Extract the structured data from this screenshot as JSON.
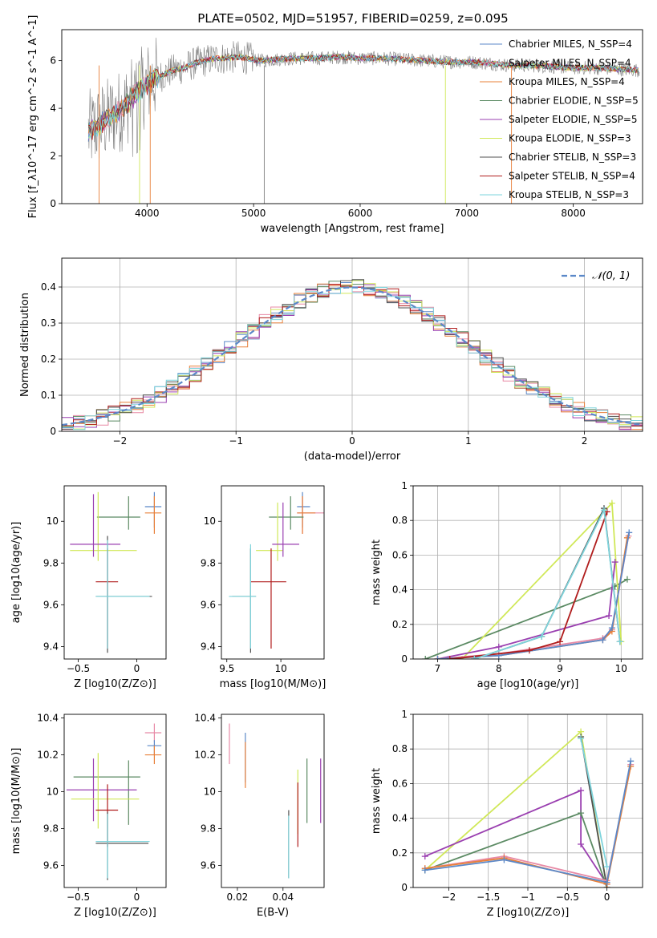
{
  "chart_data": [
    {
      "id": "spectrum",
      "type": "line",
      "title": "PLATE=0502, MJD=51957, FIBERID=0259, z=0.095",
      "xlabel": "wavelength [Angstrom, rest frame]",
      "ylabel": "Flux [f_λ10^-17 erg cm^-2 s^-1 A^-1]",
      "xlim": [
        3200,
        8650
      ],
      "ylim": [
        0,
        7.3
      ],
      "xticks": [
        4000,
        5000,
        6000,
        7000,
        8000
      ],
      "yticks": [
        0,
        2,
        4,
        6
      ],
      "grid": false,
      "legend_position": "right",
      "continuum": {
        "x": [
          3450,
          3550,
          3650,
          3750,
          3850,
          3950,
          4050,
          4150,
          4250,
          4350,
          4450,
          4550,
          4650,
          4750,
          4850,
          4950,
          5050,
          5200,
          5400,
          5600,
          5800,
          6000,
          6200,
          6400,
          6600,
          6800,
          7000,
          7200,
          7400,
          7600,
          7800,
          8000,
          8200,
          8400,
          8600
        ],
        "y": [
          3.0,
          3.3,
          3.6,
          3.9,
          4.4,
          4.8,
          5.2,
          5.4,
          5.6,
          5.7,
          5.9,
          6.0,
          6.1,
          6.1,
          6.15,
          6.1,
          6.0,
          6.05,
          6.1,
          6.1,
          6.15,
          6.1,
          6.1,
          6.05,
          6.0,
          5.95,
          5.95,
          5.9,
          5.8,
          5.8,
          5.75,
          5.7,
          5.7,
          5.65,
          5.6
        ]
      },
      "data_color": "#808080",
      "series": [
        {
          "name": "Chabrier MILES, N_SSP=4",
          "color": "#5b88c8"
        },
        {
          "name": "Salpeter MILES, N_SSP=4",
          "color": "#e88aa6"
        },
        {
          "name": "Kroupa MILES, N_SSP=4",
          "color": "#e8803a"
        },
        {
          "name": "Chabrier ELODIE, N_SSP=5",
          "color": "#5b8a63"
        },
        {
          "name": "Salpeter ELODIE, N_SSP=5",
          "color": "#9a3fb0"
        },
        {
          "name": "Kroupa ELODIE, N_SSP=3",
          "color": "#d0e858"
        },
        {
          "name": "Chabrier STELIB, N_SSP=3",
          "color": "#505050"
        },
        {
          "name": "Salpeter STELIB, N_SSP=4",
          "color": "#b01c1c"
        },
        {
          "name": "Kroupa STELIB, N_SSP=3",
          "color": "#7ed4dc"
        }
      ]
    },
    {
      "id": "residuals",
      "type": "histogram",
      "xlabel": "(data-model)/error",
      "ylabel": "Normed distribution",
      "xlim": [
        -2.5,
        2.5
      ],
      "ylim": [
        0,
        0.48
      ],
      "xticks": [
        -2,
        -1,
        0,
        1,
        2
      ],
      "yticks": [
        0.0,
        0.1,
        0.2,
        0.3,
        0.4
      ],
      "grid": true,
      "legend_position": "top-right",
      "reference_curve": {
        "name": "𝒩(0, 1)",
        "color": "#5b88c8",
        "style": "dashed"
      },
      "bin_width": 0.1
    },
    {
      "id": "age_vs_Z",
      "type": "errorbar",
      "xlabel": "Z [log10(Z/Z⊙)]",
      "ylabel": "age  [log10(age/yr)]",
      "xlim": [
        -0.62,
        0.25
      ],
      "ylim": [
        9.34,
        10.17
      ],
      "xticks": [
        -0.5,
        0.0
      ],
      "yticks": [
        9.4,
        9.6,
        9.8,
        10.0
      ],
      "points": [
        {
          "x": 0.15,
          "y": 10.07,
          "xerr": [
            0.08,
            0.06
          ],
          "yerr": [
            0.1,
            0.07
          ],
          "color": "#5b88c8"
        },
        {
          "x": 0.15,
          "y": 10.04,
          "xerr": [
            0.08,
            0.06
          ],
          "yerr": [
            0.1,
            0.08
          ],
          "color": "#e8803a"
        },
        {
          "x": -0.07,
          "y": 10.02,
          "xerr": [
            0.27,
            0.1
          ],
          "yerr": [
            0.06,
            0.1
          ],
          "color": "#5b8a63"
        },
        {
          "x": -0.33,
          "y": 9.86,
          "xerr": [
            0.24,
            0.33
          ],
          "yerr": [
            0.05,
            0.28
          ],
          "color": "#d0e858"
        },
        {
          "x": -0.37,
          "y": 9.89,
          "xerr": [
            0.2,
            0.23
          ],
          "yerr": [
            0.06,
            0.24
          ],
          "color": "#9a3fb0"
        },
        {
          "x": -0.25,
          "y": 9.71,
          "xerr": [
            0.1,
            0.09
          ],
          "yerr": [
            0.32,
            0.16
          ],
          "color": "#b01c1c"
        },
        {
          "x": -0.25,
          "y": 9.64,
          "xerr": [
            0.1,
            0.38
          ],
          "yerr": [
            0.27,
            0.29
          ],
          "color": "#505050"
        },
        {
          "x": -0.25,
          "y": 9.64,
          "xerr": [
            0.1,
            0.36
          ],
          "yerr": [
            0.25,
            0.27
          ],
          "color": "#7ed4dc"
        }
      ]
    },
    {
      "id": "age_vs_mass",
      "type": "errorbar",
      "xlabel": "mass [log10(M/M⊙)]",
      "ylabel": "",
      "xlim": [
        9.45,
        10.4
      ],
      "ylim": [
        9.34,
        10.17
      ],
      "xticks": [
        9.5,
        10.0
      ],
      "yticks": [
        9.4,
        9.6,
        9.8,
        10.0
      ],
      "points": [
        {
          "x": 10.2,
          "y": 10.07,
          "xerr": [
            0.05,
            0.07
          ],
          "yerr": [
            0.1,
            0.07
          ],
          "color": "#5b88c8"
        },
        {
          "x": 10.2,
          "y": 10.04,
          "xerr": [
            0.05,
            0.2
          ],
          "yerr": [
            0.1,
            0.08
          ],
          "color": "#e88aa6"
        },
        {
          "x": 10.2,
          "y": 10.04,
          "xerr": [
            0.05,
            0.12
          ],
          "yerr": [
            0.1,
            0.08
          ],
          "color": "#e8803a"
        },
        {
          "x": 10.09,
          "y": 10.02,
          "xerr": [
            0.2,
            0.12
          ],
          "yerr": [
            0.06,
            0.1
          ],
          "color": "#5b8a63"
        },
        {
          "x": 9.97,
          "y": 9.86,
          "xerr": [
            0.2,
            0.05
          ],
          "yerr": [
            0.05,
            0.23
          ],
          "color": "#d0e858"
        },
        {
          "x": 10.02,
          "y": 9.89,
          "xerr": [
            0.1,
            0.15
          ],
          "yerr": [
            0.06,
            0.2
          ],
          "color": "#9a3fb0"
        },
        {
          "x": 9.91,
          "y": 9.71,
          "xerr": [
            0.19,
            0.14
          ],
          "yerr": [
            0.32,
            0.16
          ],
          "color": "#b01c1c"
        },
        {
          "x": 9.72,
          "y": 9.64,
          "xerr": [
            0.17,
            0.05
          ],
          "yerr": [
            0.27,
            0.23
          ],
          "color": "#505050"
        },
        {
          "x": 9.72,
          "y": 9.64,
          "xerr": [
            0.2,
            0.05
          ],
          "yerr": [
            0.25,
            0.25
          ],
          "color": "#7ed4dc"
        }
      ]
    },
    {
      "id": "mass_weight_vs_age",
      "type": "line",
      "xlabel": "age  [log10(age/yr)]",
      "ylabel": "mass weight",
      "xlim": [
        6.6,
        10.35
      ],
      "ylim": [
        0,
        1.0
      ],
      "xticks": [
        7,
        8,
        9,
        10
      ],
      "yticks": [
        0.0,
        0.2,
        0.4,
        0.6,
        0.8,
        1.0
      ],
      "grid": true,
      "series": [
        {
          "color": "#5b8a63",
          "x": [
            6.8,
            9.9,
            10.1
          ],
          "y": [
            0.0,
            0.42,
            0.46
          ]
        },
        {
          "color": "#d0e858",
          "x": [
            7.4,
            9.85,
            10.0
          ],
          "y": [
            0.0,
            0.9,
            0.1
          ]
        },
        {
          "color": "#9a3fb0",
          "x": [
            7.0,
            8.0,
            9.8,
            9.9
          ],
          "y": [
            0.0,
            0.07,
            0.25,
            0.56
          ]
        },
        {
          "color": "#e88aa6",
          "x": [
            7.0,
            8.0,
            9.7,
            9.85,
            10.12
          ],
          "y": [
            0.0,
            0.03,
            0.12,
            0.17,
            0.71
          ]
        },
        {
          "color": "#e8803a",
          "x": [
            7.0,
            8.0,
            9.7,
            9.85,
            10.1
          ],
          "y": [
            0.0,
            0.02,
            0.11,
            0.16,
            0.7
          ]
        },
        {
          "color": "#5b88c8",
          "x": [
            7.0,
            8.0,
            9.7,
            9.85,
            10.13
          ],
          "y": [
            0.0,
            0.02,
            0.11,
            0.18,
            0.73
          ]
        },
        {
          "color": "#b01c1c",
          "x": [
            7.2,
            8.5,
            9.0,
            9.77
          ],
          "y": [
            0.0,
            0.05,
            0.1,
            0.85
          ]
        },
        {
          "color": "#505050",
          "x": [
            7.6,
            8.7,
            9.72,
            9.98
          ],
          "y": [
            0.0,
            0.13,
            0.87,
            0.1
          ]
        },
        {
          "color": "#7ed4dc",
          "x": [
            7.6,
            8.7,
            9.72,
            9.98
          ],
          "y": [
            0.0,
            0.13,
            0.86,
            0.1
          ]
        }
      ]
    },
    {
      "id": "mass_vs_Z",
      "type": "errorbar",
      "xlabel": "Z [log10(Z/Z⊙)]",
      "ylabel": "mass [log10(M/M⊙)]",
      "xlim": [
        -0.62,
        0.25
      ],
      "ylim": [
        9.48,
        10.42
      ],
      "xticks": [
        -0.5,
        0.0
      ],
      "yticks": [
        9.6,
        9.8,
        10.0,
        10.2,
        10.4
      ],
      "points": [
        {
          "x": 0.15,
          "y": 10.32,
          "xerr": [
            0.08,
            0.06
          ],
          "yerr": [
            0.05,
            0.05
          ],
          "color": "#e88aa6"
        },
        {
          "x": 0.15,
          "y": 10.25,
          "xerr": [
            0.06,
            0.06
          ],
          "yerr": [
            0.05,
            0.03
          ],
          "color": "#5b88c8"
        },
        {
          "x": 0.15,
          "y": 10.2,
          "xerr": [
            0.08,
            0.06
          ],
          "yerr": [
            0.05,
            0.05
          ],
          "color": "#e8803a"
        },
        {
          "x": -0.07,
          "y": 10.08,
          "xerr": [
            0.47,
            0.1
          ],
          "yerr": [
            0.26,
            0.09
          ],
          "color": "#5b8a63"
        },
        {
          "x": -0.37,
          "y": 10.01,
          "xerr": [
            0.23,
            0.37
          ],
          "yerr": [
            0.17,
            0.17
          ],
          "color": "#9a3fb0"
        },
        {
          "x": -0.33,
          "y": 9.96,
          "xerr": [
            0.23,
            0.35
          ],
          "yerr": [
            0.16,
            0.25
          ],
          "color": "#d0e858"
        },
        {
          "x": -0.25,
          "y": 9.9,
          "xerr": [
            0.1,
            0.09
          ],
          "yerr": [
            0.2,
            0.14
          ],
          "color": "#b01c1c"
        },
        {
          "x": -0.25,
          "y": 9.72,
          "xerr": [
            0.1,
            0.35
          ],
          "yerr": [
            0.2,
            0.17
          ],
          "color": "#505050"
        },
        {
          "x": -0.25,
          "y": 9.73,
          "xerr": [
            0.1,
            0.36
          ],
          "yerr": [
            0.2,
            0.15
          ],
          "color": "#7ed4dc"
        }
      ]
    },
    {
      "id": "mass_vs_ebv",
      "type": "errorbar",
      "xlabel": "E(B-V)",
      "ylabel": "",
      "xlim": [
        0.013,
        0.058
      ],
      "ylim": [
        9.48,
        10.42
      ],
      "xticks": [
        0.02,
        0.04
      ],
      "yticks": [
        9.6,
        9.8,
        10.0,
        10.2,
        10.4
      ],
      "points": [
        {
          "x": 0.0165,
          "y": 10.25,
          "yerr": [
            0.1,
            0.12
          ],
          "color": "#e88aa6"
        },
        {
          "x": 0.0235,
          "y": 10.2,
          "yerr": [
            0.15,
            0.12
          ],
          "color": "#5b88c8"
        },
        {
          "x": 0.0235,
          "y": 10.17,
          "yerr": [
            0.15,
            0.1
          ],
          "color": "#e8803a"
        },
        {
          "x": 0.0425,
          "y": 9.7,
          "yerr": [
            0.17,
            0.2
          ],
          "color": "#505050"
        },
        {
          "x": 0.0425,
          "y": 9.7,
          "yerr": [
            0.17,
            0.17
          ],
          "color": "#7ed4dc"
        },
        {
          "x": 0.0465,
          "y": 9.95,
          "yerr": [
            0.18,
            0.17
          ],
          "color": "#d0e858"
        },
        {
          "x": 0.0465,
          "y": 9.88,
          "yerr": [
            0.18,
            0.17
          ],
          "color": "#b01c1c"
        },
        {
          "x": 0.0505,
          "y": 10.0,
          "yerr": [
            0.17,
            0.18
          ],
          "color": "#5b8a63"
        },
        {
          "x": 0.0565,
          "y": 10.0,
          "yerr": [
            0.17,
            0.18
          ],
          "color": "#9a3fb0"
        }
      ]
    },
    {
      "id": "mass_weight_vs_Z",
      "type": "line",
      "xlabel": "Z [log10(Z/Z⊙)]",
      "ylabel": "mass weight",
      "xlim": [
        -2.45,
        0.45
      ],
      "ylim": [
        0,
        1.0
      ],
      "xticks": [
        -2.0,
        -1.5,
        -1.0,
        -0.5,
        0.0
      ],
      "yticks": [
        0.0,
        0.2,
        0.4,
        0.6,
        0.8,
        1.0
      ],
      "grid": true,
      "series": [
        {
          "color": "#d0e858",
          "x": [
            -2.3,
            -0.33,
            0.0
          ],
          "y": [
            0.1,
            0.9,
            0.0
          ]
        },
        {
          "color": "#9a3fb0",
          "x": [
            -2.3,
            -0.33,
            -0.33,
            0.0
          ],
          "y": [
            0.18,
            0.56,
            0.25,
            0.02
          ]
        },
        {
          "color": "#5b8a63",
          "x": [
            -2.3,
            -0.33,
            0.0
          ],
          "y": [
            0.1,
            0.43,
            0.0
          ]
        },
        {
          "color": "#505050",
          "x": [
            -0.33,
            0.0
          ],
          "y": [
            0.87,
            0.0
          ]
        },
        {
          "color": "#7ed4dc",
          "x": [
            -0.33,
            0.0
          ],
          "y": [
            0.86,
            0.12
          ]
        },
        {
          "color": "#e88aa6",
          "x": [
            -2.3,
            -1.3,
            0.0,
            0.3
          ],
          "y": [
            0.11,
            0.18,
            0.04,
            0.71
          ]
        },
        {
          "color": "#e8803a",
          "x": [
            -2.3,
            -1.3,
            0.0,
            0.3
          ],
          "y": [
            0.11,
            0.17,
            0.02,
            0.7
          ]
        },
        {
          "color": "#5b88c8",
          "x": [
            -2.3,
            -1.3,
            0.0,
            0.3
          ],
          "y": [
            0.1,
            0.16,
            0.03,
            0.73
          ]
        }
      ]
    }
  ]
}
